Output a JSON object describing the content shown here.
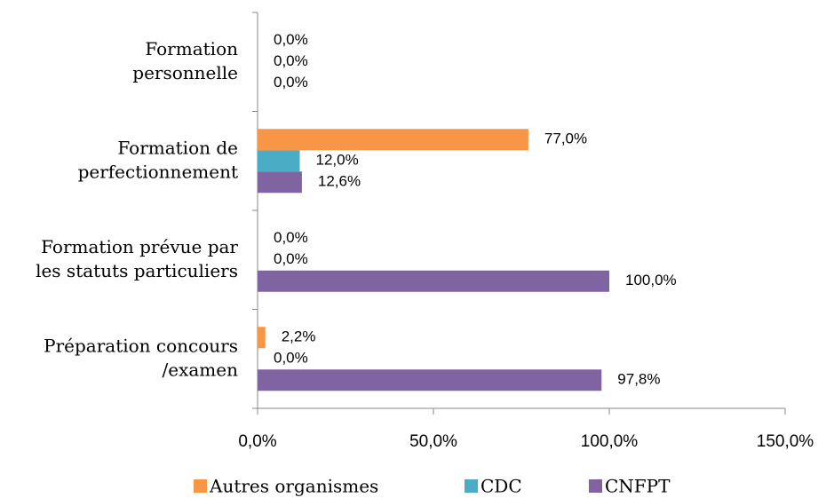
{
  "chart_data": {
    "type": "hbar",
    "categories": [
      [
        "Formation",
        "personnelle"
      ],
      [
        "Formation de",
        "perfectionnement"
      ],
      [
        "Formation prévue par",
        "les statuts particuliers"
      ],
      [
        "Préparation concours",
        "/examen"
      ]
    ],
    "series": [
      {
        "name": "Autres organismes",
        "color": "#f79646",
        "values": [
          0,
          77,
          0,
          2.2
        ],
        "value_labels": [
          "0,0%",
          "77,0%",
          "0,0%",
          "2,2%"
        ]
      },
      {
        "name": "CDC",
        "color": "#4bacc6",
        "values": [
          0,
          12,
          0,
          0
        ],
        "value_labels": [
          "0,0%",
          "12,0%",
          "0,0%",
          "0,0%"
        ]
      },
      {
        "name": "CNFPT",
        "color": "#8064a2",
        "values": [
          0,
          12.6,
          100,
          97.8
        ],
        "value_labels": [
          "0,0%",
          "12,6%",
          "100,0%",
          "97,8%"
        ]
      }
    ],
    "xlim": [
      0,
      150
    ],
    "xticks": [
      {
        "value": 0,
        "label": "0,0%"
      },
      {
        "value": 50,
        "label": "50,0%"
      },
      {
        "value": 100,
        "label": "100,0%"
      },
      {
        "value": 150,
        "label": "150,0%"
      }
    ],
    "legend": "bottom"
  }
}
